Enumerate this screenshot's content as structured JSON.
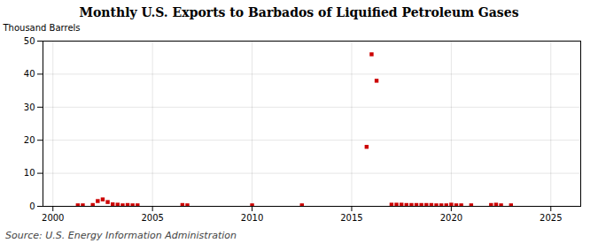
{
  "chart_data": {
    "type": "scatter",
    "title": "Monthly U.S. Exports to Barbados of Liquified Petroleum Gases",
    "ylabel": "Thousand Barrels",
    "annotations": [
      "Source: U.S. Energy Information Administration"
    ],
    "x": [
      2001.25,
      2001.5,
      2002.0,
      2002.25,
      2002.5,
      2002.75,
      2003.0,
      2003.25,
      2003.5,
      2003.75,
      2004.0,
      2004.25,
      2006.5,
      2006.75,
      2010.0,
      2012.5,
      2015.75,
      2016.0,
      2016.25,
      2017.0,
      2017.25,
      2017.5,
      2017.75,
      2018.0,
      2018.25,
      2018.5,
      2018.75,
      2019.0,
      2019.25,
      2019.5,
      2019.75,
      2020.0,
      2020.25,
      2020.5,
      2021.0,
      2022.0,
      2022.25,
      2022.5,
      2023.0
    ],
    "values": [
      0.3,
      0.3,
      0.4,
      1.6,
      2.1,
      1.3,
      0.6,
      0.5,
      0.3,
      0.4,
      0.3,
      0.3,
      0.4,
      0.3,
      0.3,
      0.3,
      18.0,
      46.0,
      38.0,
      0.5,
      0.5,
      0.5,
      0.4,
      0.4,
      0.4,
      0.4,
      0.4,
      0.4,
      0.3,
      0.3,
      0.3,
      0.5,
      0.3,
      0.3,
      0.3,
      0.4,
      0.5,
      0.3,
      0.3
    ],
    "xlim": [
      1999.5,
      2026.5
    ],
    "ylim": [
      0,
      50
    ],
    "xticks": [
      2000,
      2005,
      2010,
      2015,
      2020,
      2025
    ],
    "yticks": [
      0,
      10,
      20,
      30,
      40,
      50
    ],
    "grid": true,
    "color": "#cc0000",
    "marker": "square"
  }
}
